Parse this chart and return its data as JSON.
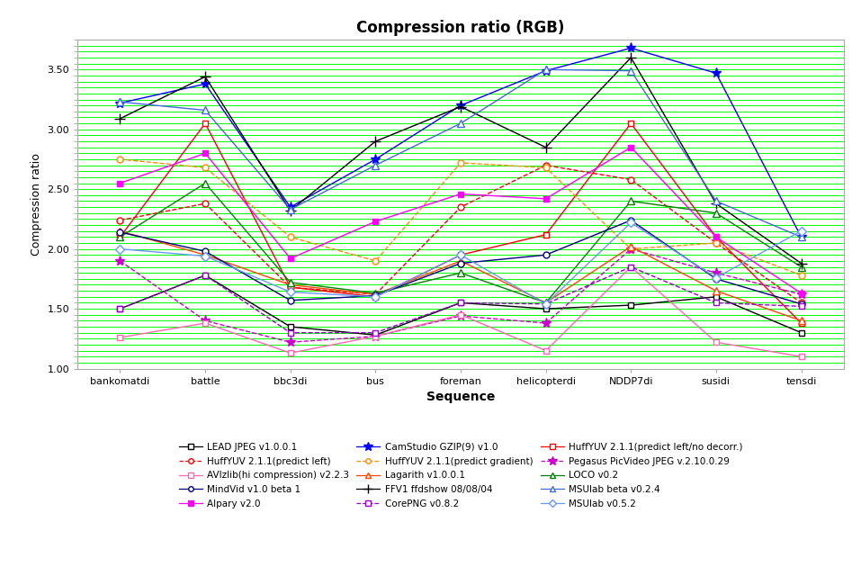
{
  "title": "Compression ratio (RGB)",
  "xlabel": "Sequence",
  "ylabel": "Compression ratio",
  "sequences": [
    "bankomatdi",
    "battle",
    "bbc3di",
    "bus",
    "foreman",
    "helicopterdi",
    "NDDP7di",
    "susidi",
    "tensdi"
  ],
  "ylim": [
    1.0,
    3.75
  ],
  "yticks": [
    1.0,
    1.5,
    2.0,
    2.5,
    3.0,
    3.5
  ],
  "series": [
    {
      "label": "LEAD JPEG v1.0.0.1",
      "color": "#000000",
      "marker": "s",
      "linestyle": "-",
      "markerface": "white",
      "values": [
        1.5,
        1.78,
        1.35,
        1.28,
        1.55,
        1.5,
        1.53,
        1.6,
        1.3
      ]
    },
    {
      "label": "CamStudio GZIP(9) v1.0",
      "color": "#0000FF",
      "marker": "*",
      "linestyle": "-",
      "markerface": "#0000FF",
      "values": [
        3.22,
        3.38,
        2.35,
        2.75,
        3.2,
        3.49,
        3.68,
        3.47,
        2.1
      ]
    },
    {
      "label": "HuffYUV 2.1.1(predict left/no decorr.)",
      "color": "#FF0000",
      "marker": "s",
      "linestyle": "-",
      "markerface": "white",
      "values": [
        2.1,
        3.05,
        1.68,
        1.6,
        1.95,
        2.12,
        3.05,
        2.1,
        1.38
      ]
    },
    {
      "label": "HuffYUV 2.1.1(predict left)",
      "color": "#FF0000",
      "marker": "o",
      "linestyle": "--",
      "markerface": "white",
      "values": [
        2.24,
        2.38,
        1.68,
        1.62,
        2.35,
        2.7,
        2.58,
        2.05,
        1.55
      ]
    },
    {
      "label": "HuffYUV 2.1.1(predict gradient)",
      "color": "#FF8C00",
      "marker": "o",
      "linestyle": "--",
      "markerface": "white",
      "values": [
        2.75,
        2.68,
        2.1,
        1.9,
        2.72,
        2.68,
        2.0,
        2.05,
        1.78
      ]
    },
    {
      "label": "Pegasus PicVideo JPEG v.2.10.0.29",
      "color": "#CC00CC",
      "marker": "*",
      "linestyle": "--",
      "markerface": "#CC00CC",
      "values": [
        1.9,
        1.4,
        1.22,
        1.27,
        1.44,
        1.38,
        2.0,
        1.8,
        1.62
      ]
    },
    {
      "label": "AVIzlib(hi compression) v2.2.3",
      "color": "#FF69B4",
      "marker": "s",
      "linestyle": "-",
      "markerface": "white",
      "values": [
        1.26,
        1.38,
        1.13,
        1.27,
        1.45,
        1.15,
        1.85,
        1.22,
        1.1
      ]
    },
    {
      "label": "Lagarith v1.0.0.1",
      "color": "#FF4500",
      "marker": "^",
      "linestyle": "-",
      "markerface": "white",
      "values": [
        2.15,
        1.95,
        1.7,
        1.62,
        1.9,
        1.55,
        2.02,
        1.65,
        1.4
      ]
    },
    {
      "label": "LOCO v0.2",
      "color": "#008000",
      "marker": "^",
      "linestyle": "-",
      "markerface": "white",
      "values": [
        2.1,
        2.55,
        1.72,
        1.63,
        1.8,
        1.55,
        2.4,
        2.3,
        1.85
      ]
    },
    {
      "label": "MindVid v1.0 beta 1",
      "color": "#000080",
      "marker": "o",
      "linestyle": "-",
      "markerface": "white",
      "values": [
        2.14,
        1.98,
        1.57,
        1.61,
        1.88,
        1.95,
        2.24,
        1.75,
        1.54
      ]
    },
    {
      "label": "FFV1 ffdshow 08/08/04",
      "color": "#000000",
      "marker": "+",
      "linestyle": "-",
      "markerface": "#000000",
      "values": [
        3.09,
        3.44,
        2.32,
        2.9,
        3.19,
        2.85,
        3.6,
        2.38,
        1.88
      ]
    },
    {
      "label": "MSUlab beta v0.2.4",
      "color": "#4169E1",
      "marker": "^",
      "linestyle": "-",
      "markerface": "white",
      "values": [
        3.23,
        3.16,
        2.33,
        2.7,
        3.05,
        3.5,
        3.49,
        2.4,
        2.1
      ]
    },
    {
      "label": "Alpary v2.0",
      "color": "#FF00FF",
      "marker": "s",
      "linestyle": "-",
      "markerface": "#FF00FF",
      "values": [
        2.55,
        2.8,
        1.92,
        2.23,
        2.46,
        2.42,
        2.85,
        2.1,
        1.63
      ]
    },
    {
      "label": "CorePNG v0.8.2",
      "color": "#9900CC",
      "marker": "s",
      "linestyle": "--",
      "markerface": "white",
      "values": [
        1.5,
        1.78,
        1.3,
        1.3,
        1.55,
        1.54,
        1.85,
        1.55,
        1.52
      ]
    },
    {
      "label": "MSUlab v0.5.2",
      "color": "#6699FF",
      "marker": "D",
      "linestyle": "-",
      "markerface": "white",
      "values": [
        2.0,
        1.94,
        1.64,
        1.6,
        1.95,
        1.54,
        2.22,
        1.76,
        2.15
      ]
    }
  ],
  "legend_order": [
    0,
    1,
    2,
    3,
    4,
    5,
    6,
    7,
    8,
    9,
    10,
    11,
    12,
    13,
    14
  ],
  "background_color": "#ffffff",
  "grid_color": "#00FF00",
  "plot_bg_color": "#ffffff"
}
